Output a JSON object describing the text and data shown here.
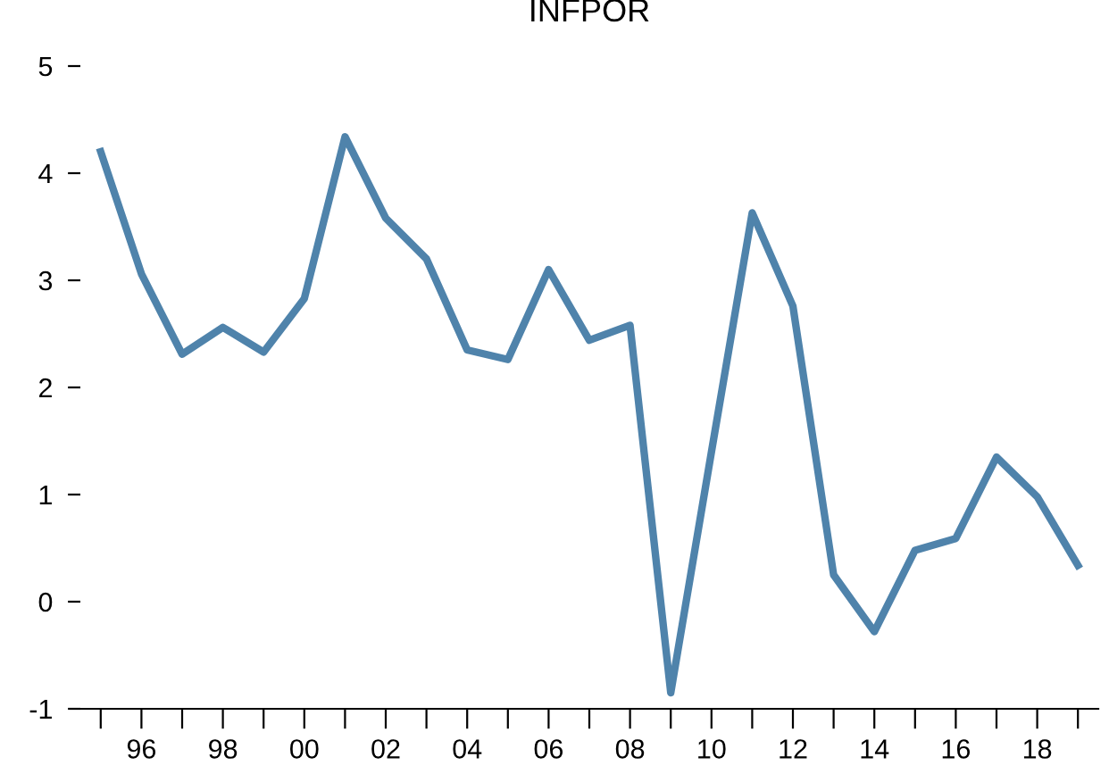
{
  "chart_data": {
    "type": "line",
    "title": "INFPOR",
    "x": [
      1995,
      1996,
      1997,
      1998,
      1999,
      2000,
      2001,
      2002,
      2003,
      2004,
      2005,
      2006,
      2007,
      2008,
      2009,
      2010,
      2011,
      2012,
      2013,
      2014,
      2015,
      2016,
      2017,
      2018,
      2019
    ],
    "series": [
      {
        "color": "#4f83ab",
        "values": [
          4.2,
          3.06,
          2.31,
          2.56,
          2.33,
          2.83,
          4.34,
          3.58,
          3.2,
          2.35,
          2.26,
          3.1,
          2.44,
          2.58,
          -0.85,
          1.4,
          3.63,
          2.76,
          0.25,
          -0.28,
          0.48,
          0.59,
          1.35,
          0.98,
          0.34
        ]
      }
    ],
    "xlim": [
      1994.5,
      2019.5
    ],
    "xticks": [
      {
        "value": 1995,
        "label": null
      },
      {
        "value": 1996,
        "label": "96"
      },
      {
        "value": 1997,
        "label": null
      },
      {
        "value": 1998,
        "label": "98"
      },
      {
        "value": 1999,
        "label": null
      },
      {
        "value": 2000,
        "label": "00"
      },
      {
        "value": 2001,
        "label": null
      },
      {
        "value": 2002,
        "label": "02"
      },
      {
        "value": 2003,
        "label": null
      },
      {
        "value": 2004,
        "label": "04"
      },
      {
        "value": 2005,
        "label": null
      },
      {
        "value": 2006,
        "label": "06"
      },
      {
        "value": 2007,
        "label": null
      },
      {
        "value": 2008,
        "label": "08"
      },
      {
        "value": 2009,
        "label": null
      },
      {
        "value": 2010,
        "label": "10"
      },
      {
        "value": 2011,
        "label": null
      },
      {
        "value": 2012,
        "label": "12"
      },
      {
        "value": 2013,
        "label": null
      },
      {
        "value": 2014,
        "label": "14"
      },
      {
        "value": 2015,
        "label": null
      },
      {
        "value": 2016,
        "label": "16"
      },
      {
        "value": 2017,
        "label": null
      },
      {
        "value": 2018,
        "label": "18"
      },
      {
        "value": 2019,
        "label": null
      }
    ],
    "ylim": [
      -1,
      5
    ],
    "yticks": [
      -1,
      0,
      1,
      2,
      3,
      4,
      5
    ],
    "grid": false,
    "legend": false,
    "marker": "none",
    "line_style": "solid"
  }
}
